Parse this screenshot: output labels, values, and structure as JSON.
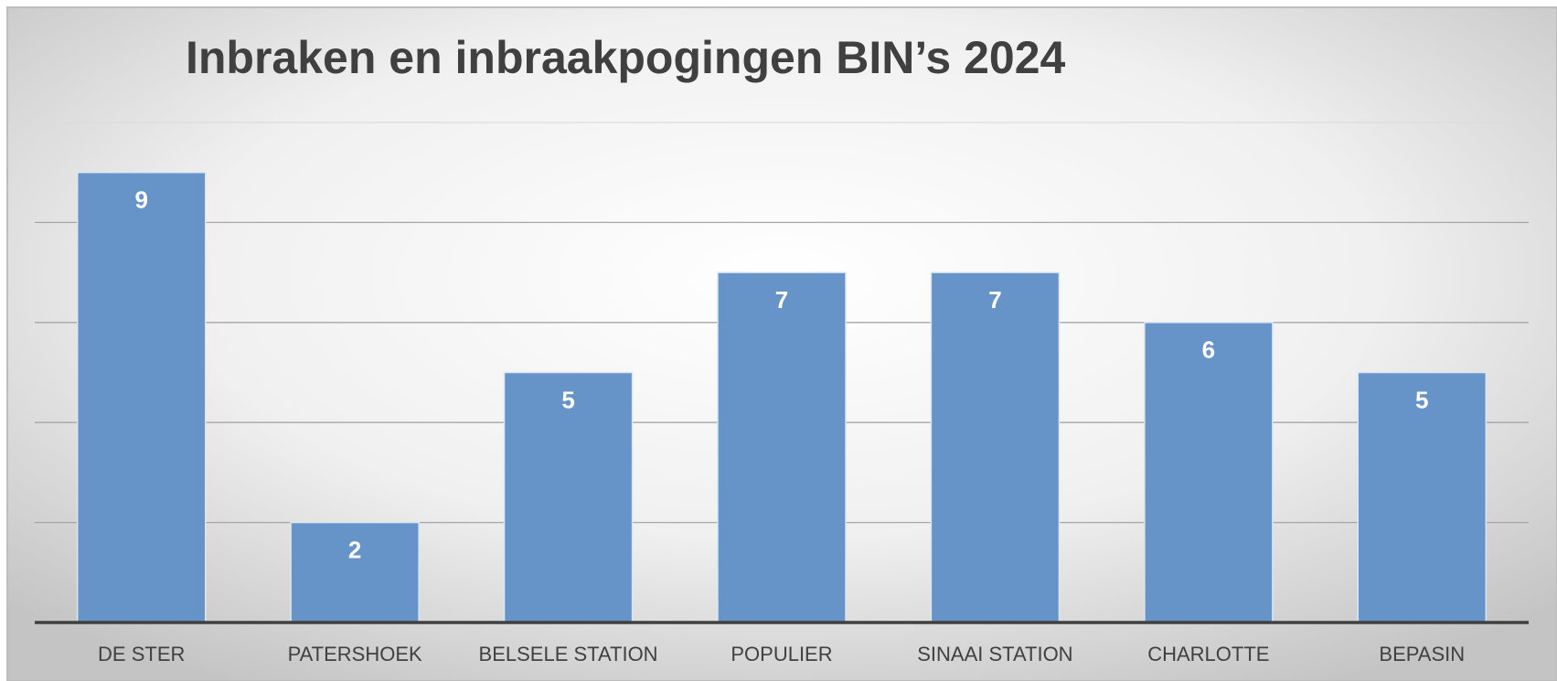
{
  "chart_data": {
    "type": "bar",
    "title": "Inbraken en inbraakpogingen BIN’s 2024",
    "categories": [
      "DE STER",
      "PATERSHOEK",
      "BELSELE STATION",
      "POPULIER",
      "SINAAI STATION",
      "CHARLOTTE",
      "BEPASIN"
    ],
    "values": [
      9,
      2,
      5,
      7,
      7,
      6,
      5
    ],
    "color": "#6794c8",
    "ylim": [
      0,
      10
    ],
    "yticks": [
      0,
      2,
      4,
      6,
      8,
      10
    ],
    "grid": true
  }
}
